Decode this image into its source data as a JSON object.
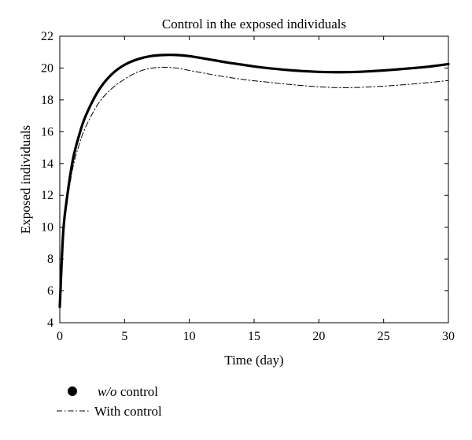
{
  "chart_data": {
    "type": "line",
    "title": "Control in the exposed individuals",
    "xlabel": "Time (day)",
    "ylabel": "Exposed individuals",
    "xlim": [
      0,
      30
    ],
    "ylim": [
      4,
      22
    ],
    "xticks": [
      0,
      5,
      10,
      15,
      20,
      25,
      30
    ],
    "yticks": [
      4,
      6,
      8,
      10,
      12,
      14,
      16,
      18,
      20,
      22
    ],
    "grid": false,
    "legend_position": "bottom-left, below plot",
    "series": [
      {
        "name": "w/o control",
        "legend_label_italic": "w/o",
        "legend_label_rest": " control",
        "style": "solid-thick",
        "color": "#000000",
        "x": [
          0,
          0.25,
          0.5,
          1,
          1.5,
          2,
          3,
          4,
          5,
          6,
          7,
          8,
          9,
          10,
          11,
          12,
          13,
          14,
          15,
          16,
          17,
          18,
          19,
          20,
          21,
          22,
          23,
          24,
          25,
          26,
          27,
          28,
          29,
          30
        ],
        "y": [
          5.0,
          9.5,
          11.5,
          14.2,
          15.8,
          17.0,
          18.6,
          19.6,
          20.2,
          20.55,
          20.75,
          20.82,
          20.82,
          20.75,
          20.62,
          20.48,
          20.34,
          20.22,
          20.1,
          20.0,
          19.92,
          19.85,
          19.8,
          19.76,
          19.74,
          19.74,
          19.76,
          19.8,
          19.85,
          19.91,
          19.98,
          20.05,
          20.14,
          20.25
        ]
      },
      {
        "name": "With control",
        "style": "dash-dot",
        "color": "#000000",
        "x": [
          0,
          0.25,
          0.5,
          1,
          1.5,
          2,
          3,
          4,
          5,
          6,
          7,
          8,
          9,
          10,
          11,
          12,
          13,
          14,
          15,
          16,
          17,
          18,
          19,
          20,
          21,
          22,
          23,
          24,
          25,
          26,
          27,
          28,
          29,
          30
        ],
        "y": [
          5.0,
          9.3,
          11.2,
          13.7,
          15.2,
          16.3,
          17.8,
          18.7,
          19.3,
          19.75,
          19.98,
          20.05,
          20.0,
          19.85,
          19.7,
          19.55,
          19.42,
          19.3,
          19.2,
          19.12,
          19.03,
          18.95,
          18.88,
          18.82,
          18.78,
          18.76,
          18.78,
          18.82,
          18.86,
          18.92,
          18.98,
          19.05,
          19.13,
          19.22
        ]
      }
    ]
  }
}
